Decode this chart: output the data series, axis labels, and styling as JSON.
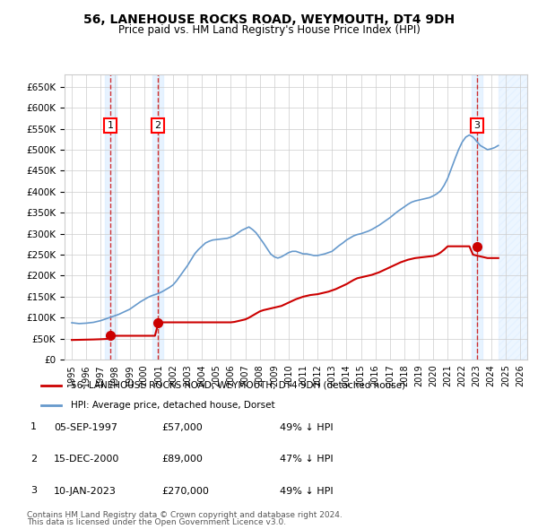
{
  "title": "56, LANEHOUSE ROCKS ROAD, WEYMOUTH, DT4 9DH",
  "subtitle": "Price paid vs. HM Land Registry's House Price Index (HPI)",
  "legend_line1": "56, LANEHOUSE ROCKS ROAD, WEYMOUTH, DT4 9DH (detached house)",
  "legend_line2": "HPI: Average price, detached house, Dorset",
  "footer1": "Contains HM Land Registry data © Crown copyright and database right 2024.",
  "footer2": "This data is licensed under the Open Government Licence v3.0.",
  "transactions": [
    {
      "num": 1,
      "date": "05-SEP-1997",
      "price": 57000,
      "pct": "49% ↓ HPI",
      "x": 1997.67
    },
    {
      "num": 2,
      "date": "15-DEC-2000",
      "price": 89000,
      "pct": "47% ↓ HPI",
      "x": 2000.95
    },
    {
      "num": 3,
      "date": "10-JAN-2023",
      "price": 270000,
      "pct": "49% ↓ HPI",
      "x": 2023.03
    }
  ],
  "hpi_color": "#6699cc",
  "price_color": "#cc0000",
  "dashed_color": "#cc0000",
  "shade_color": "#ddeeff",
  "background_color": "#ffffff",
  "grid_color": "#cccccc",
  "ylim": [
    0,
    680000
  ],
  "xlim": [
    1994.5,
    2026.5
  ],
  "yticks": [
    0,
    50000,
    100000,
    150000,
    200000,
    250000,
    300000,
    350000,
    400000,
    450000,
    500000,
    550000,
    600000,
    650000
  ],
  "xticks": [
    1995,
    1996,
    1997,
    1998,
    1999,
    2000,
    2001,
    2002,
    2003,
    2004,
    2005,
    2006,
    2007,
    2008,
    2009,
    2010,
    2011,
    2012,
    2013,
    2014,
    2015,
    2016,
    2017,
    2018,
    2019,
    2020,
    2021,
    2022,
    2023,
    2024,
    2025,
    2026
  ],
  "hpi_data": {
    "x": [
      1995,
      1995.25,
      1995.5,
      1995.75,
      1996,
      1996.25,
      1996.5,
      1996.75,
      1997,
      1997.25,
      1997.5,
      1997.75,
      1998,
      1998.25,
      1998.5,
      1998.75,
      1999,
      1999.25,
      1999.5,
      1999.75,
      2000,
      2000.25,
      2000.5,
      2000.75,
      2001,
      2001.25,
      2001.5,
      2001.75,
      2002,
      2002.25,
      2002.5,
      2002.75,
      2003,
      2003.25,
      2003.5,
      2003.75,
      2004,
      2004.25,
      2004.5,
      2004.75,
      2005,
      2005.25,
      2005.5,
      2005.75,
      2006,
      2006.25,
      2006.5,
      2006.75,
      2007,
      2007.25,
      2007.5,
      2007.75,
      2008,
      2008.25,
      2008.5,
      2008.75,
      2009,
      2009.25,
      2009.5,
      2009.75,
      2010,
      2010.25,
      2010.5,
      2010.75,
      2011,
      2011.25,
      2011.5,
      2011.75,
      2012,
      2012.25,
      2012.5,
      2012.75,
      2013,
      2013.25,
      2013.5,
      2013.75,
      2014,
      2014.25,
      2014.5,
      2014.75,
      2015,
      2015.25,
      2015.5,
      2015.75,
      2016,
      2016.25,
      2016.5,
      2016.75,
      2017,
      2017.25,
      2017.5,
      2017.75,
      2018,
      2018.25,
      2018.5,
      2018.75,
      2019,
      2019.25,
      2019.5,
      2019.75,
      2020,
      2020.25,
      2020.5,
      2020.75,
      2021,
      2021.25,
      2021.5,
      2021.75,
      2022,
      2022.25,
      2022.5,
      2022.75,
      2023,
      2023.25,
      2023.5,
      2023.75,
      2024,
      2024.25,
      2024.5
    ],
    "y": [
      88000,
      87000,
      86000,
      86500,
      87000,
      88000,
      89000,
      91000,
      93000,
      96000,
      99000,
      102000,
      105000,
      108000,
      112000,
      116000,
      120000,
      126000,
      132000,
      138000,
      143000,
      148000,
      152000,
      155000,
      158000,
      162000,
      167000,
      172000,
      178000,
      188000,
      200000,
      212000,
      224000,
      238000,
      252000,
      262000,
      270000,
      278000,
      282000,
      285000,
      286000,
      287000,
      288000,
      289000,
      292000,
      296000,
      302000,
      308000,
      312000,
      316000,
      310000,
      302000,
      290000,
      278000,
      265000,
      252000,
      245000,
      242000,
      245000,
      250000,
      255000,
      258000,
      258000,
      255000,
      252000,
      252000,
      250000,
      248000,
      248000,
      250000,
      252000,
      255000,
      258000,
      265000,
      272000,
      278000,
      285000,
      290000,
      295000,
      298000,
      300000,
      303000,
      306000,
      310000,
      315000,
      320000,
      326000,
      332000,
      338000,
      345000,
      352000,
      358000,
      364000,
      370000,
      375000,
      378000,
      380000,
      382000,
      384000,
      386000,
      390000,
      395000,
      402000,
      415000,
      432000,
      455000,
      478000,
      500000,
      518000,
      530000,
      535000,
      530000,
      520000,
      510000,
      505000,
      500000,
      502000,
      505000,
      510000
    ]
  },
  "price_data": {
    "x": [
      1995,
      1995.25,
      1995.5,
      1995.75,
      1996,
      1996.25,
      1996.5,
      1996.75,
      1997,
      1997.25,
      1997.5,
      1997.75,
      1998,
      1998.25,
      1998.5,
      1998.75,
      1999,
      1999.25,
      1999.5,
      1999.75,
      2000,
      2000.25,
      2000.5,
      2000.75,
      2001,
      2001.25,
      2001.5,
      2001.75,
      2002,
      2002.25,
      2002.5,
      2002.75,
      2003,
      2003.25,
      2003.5,
      2003.75,
      2004,
      2004.25,
      2004.5,
      2004.75,
      2005,
      2005.25,
      2005.5,
      2005.75,
      2006,
      2006.25,
      2006.5,
      2006.75,
      2007,
      2007.25,
      2007.5,
      2007.75,
      2008,
      2008.25,
      2008.5,
      2008.75,
      2009,
      2009.25,
      2009.5,
      2009.75,
      2010,
      2010.25,
      2010.5,
      2010.75,
      2011,
      2011.25,
      2011.5,
      2011.75,
      2012,
      2012.25,
      2012.5,
      2012.75,
      2013,
      2013.25,
      2013.5,
      2013.75,
      2014,
      2014.25,
      2014.5,
      2014.75,
      2015,
      2015.25,
      2015.5,
      2015.75,
      2016,
      2016.25,
      2016.5,
      2016.75,
      2017,
      2017.25,
      2017.5,
      2017.75,
      2018,
      2018.25,
      2018.5,
      2018.75,
      2019,
      2019.25,
      2019.5,
      2019.75,
      2020,
      2020.25,
      2020.5,
      2020.75,
      2021,
      2021.25,
      2021.5,
      2021.75,
      2022,
      2022.25,
      2022.5,
      2022.75,
      2023,
      2023.25,
      2023.5,
      2023.75,
      2024,
      2024.25,
      2024.5
    ],
    "y": [
      47000,
      47200,
      47400,
      47600,
      47800,
      48000,
      48200,
      48500,
      48800,
      49200,
      49600,
      57000,
      57000,
      57000,
      57000,
      57000,
      57000,
      57000,
      57000,
      57000,
      57000,
      57000,
      57000,
      57000,
      89000,
      89000,
      89000,
      89000,
      89000,
      89000,
      89000,
      89000,
      89000,
      89000,
      89000,
      89000,
      89000,
      89000,
      89000,
      89000,
      89000,
      89000,
      89000,
      89000,
      89000,
      90000,
      92000,
      94000,
      96000,
      100000,
      105000,
      110000,
      115000,
      118000,
      120000,
      122000,
      124000,
      126000,
      128000,
      132000,
      136000,
      140000,
      144000,
      147000,
      150000,
      152000,
      154000,
      155000,
      156000,
      158000,
      160000,
      162000,
      165000,
      168000,
      172000,
      176000,
      180000,
      185000,
      190000,
      194000,
      196000,
      198000,
      200000,
      202000,
      205000,
      208000,
      212000,
      216000,
      220000,
      224000,
      228000,
      232000,
      235000,
      238000,
      240000,
      242000,
      243000,
      244000,
      245000,
      246000,
      247000,
      250000,
      255000,
      262000,
      270000,
      270000,
      270000,
      270000,
      270000,
      270000,
      270000,
      250000,
      248000,
      246000,
      244000,
      242000,
      242000,
      242000,
      242000
    ]
  }
}
